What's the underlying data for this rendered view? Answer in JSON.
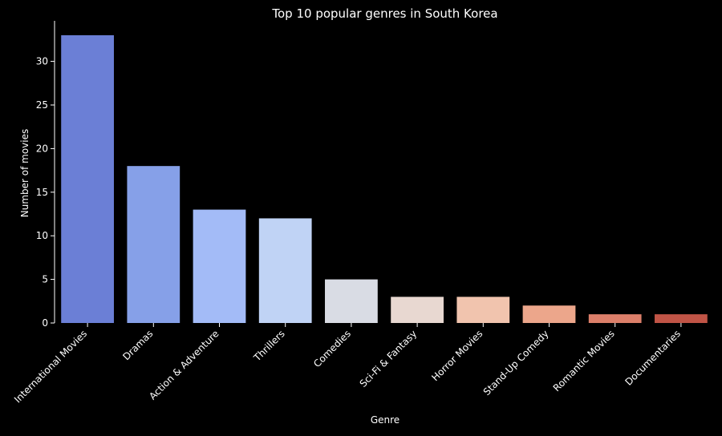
{
  "chart_data": {
    "type": "bar",
    "title": "Top 10 popular genres in South Korea",
    "xlabel": "Genre",
    "ylabel": "Number of movies",
    "categories": [
      "International Movies",
      "Dramas",
      "Action & Adventure",
      "Thrillers",
      "Comedies",
      "Sci-Fi & Fantasy",
      "Horror Movies",
      "Stand-Up Comedy",
      "Romantic Movies",
      "Documentaries"
    ],
    "values": [
      33,
      18,
      13,
      12,
      5,
      3,
      3,
      2,
      1,
      1
    ],
    "colors": [
      "#6b7fd6",
      "#86a0e8",
      "#a3bbf7",
      "#c0d3f5",
      "#d9dce4",
      "#e8d8d1",
      "#f1c4ae",
      "#eca68b",
      "#dc7f6a",
      "#c05446"
    ],
    "ylim": [
      0,
      34.65
    ],
    "yticks": [
      0,
      5,
      10,
      15,
      20,
      25,
      30
    ],
    "grid": false,
    "background": "#000000",
    "text_color": "#ffffff"
  }
}
